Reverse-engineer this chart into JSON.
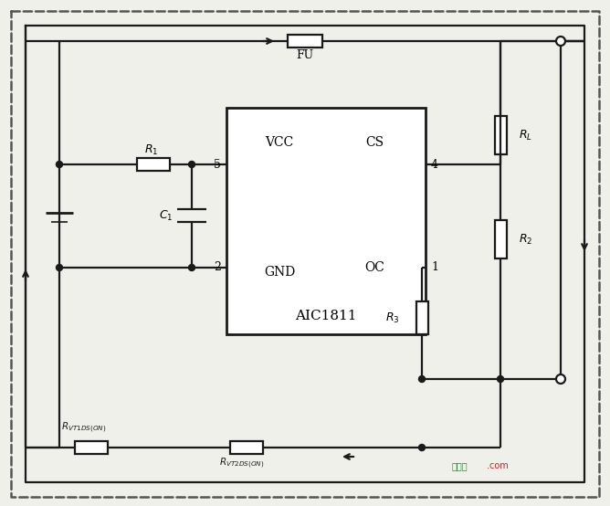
{
  "bg_color": "#f0f0eb",
  "line_color": "#1a1a1a",
  "dashed_color": "#555555",
  "fig_width": 6.68,
  "fig_height": 5.54,
  "dpi": 100,
  "ic_label": "AIC1811",
  "pin_vcc": "VCC",
  "pin_gnd": "GND",
  "pin_cs": "CS",
  "pin_oc": "OC",
  "pin5": "5",
  "pin2": "2",
  "pin4": "4",
  "pin1": "1",
  "fuse_label": "FU",
  "r1_label": "R",
  "r2_label": "R",
  "r3_label": "R",
  "rl_label": "R",
  "c1_label": "C",
  "rvt1_label": "R",
  "rvt2_label": "R",
  "watermark1": "接线图",
  "watermark2": ".com"
}
